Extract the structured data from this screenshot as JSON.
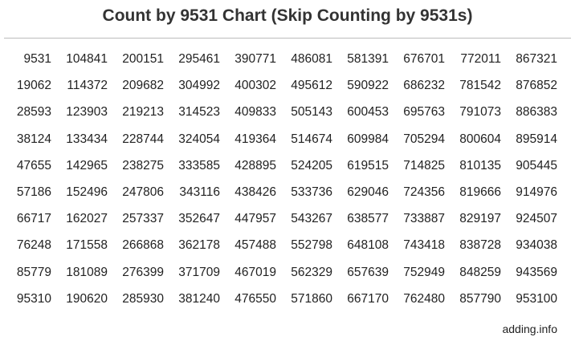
{
  "title": "Count by 9531 Chart (Skip Counting by 9531s)",
  "footer": "adding.info",
  "rows": [
    [
      "9531",
      "104841",
      "200151",
      "295461",
      "390771",
      "486081",
      "581391",
      "676701",
      "772011",
      "867321"
    ],
    [
      "19062",
      "114372",
      "209682",
      "304992",
      "400302",
      "495612",
      "590922",
      "686232",
      "781542",
      "876852"
    ],
    [
      "28593",
      "123903",
      "219213",
      "314523",
      "409833",
      "505143",
      "600453",
      "695763",
      "791073",
      "886383"
    ],
    [
      "38124",
      "133434",
      "228744",
      "324054",
      "419364",
      "514674",
      "609984",
      "705294",
      "800604",
      "895914"
    ],
    [
      "47655",
      "142965",
      "238275",
      "333585",
      "428895",
      "524205",
      "619515",
      "714825",
      "810135",
      "905445"
    ],
    [
      "57186",
      "152496",
      "247806",
      "343116",
      "438426",
      "533736",
      "629046",
      "724356",
      "819666",
      "914976"
    ],
    [
      "66717",
      "162027",
      "257337",
      "352647",
      "447957",
      "543267",
      "638577",
      "733887",
      "829197",
      "924507"
    ],
    [
      "76248",
      "171558",
      "266868",
      "362178",
      "457488",
      "552798",
      "648108",
      "743418",
      "838728",
      "934038"
    ],
    [
      "85779",
      "181089",
      "276399",
      "371709",
      "467019",
      "562329",
      "657639",
      "752949",
      "848259",
      "943569"
    ],
    [
      "95310",
      "190620",
      "285930",
      "381240",
      "476550",
      "571860",
      "667170",
      "762480",
      "857790",
      "953100"
    ]
  ]
}
